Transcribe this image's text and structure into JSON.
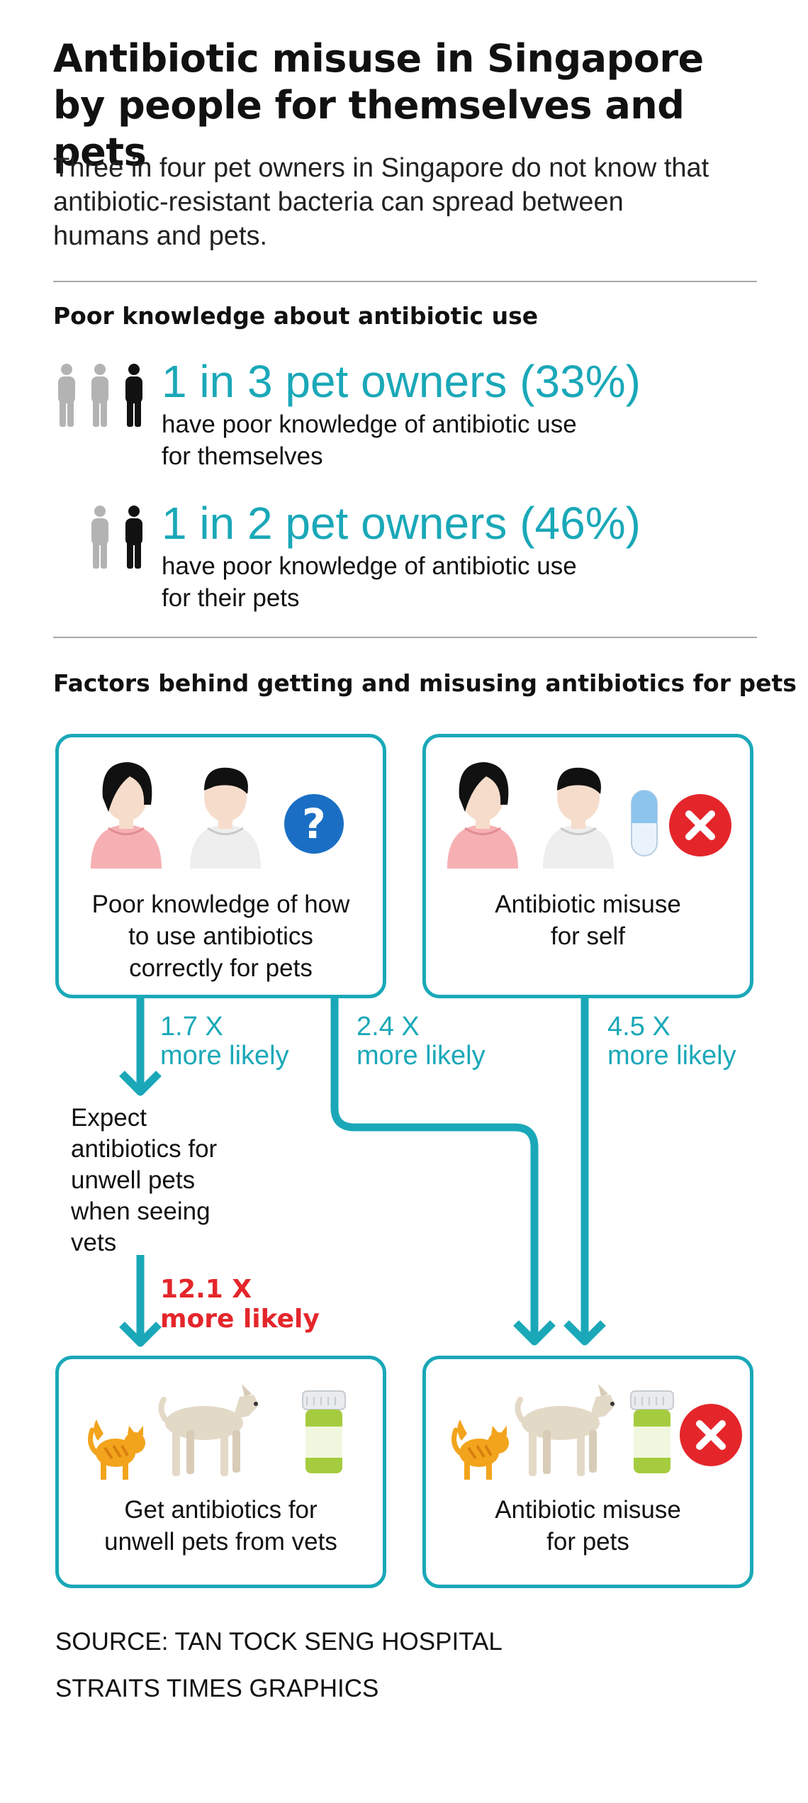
{
  "header": {
    "title_line1": "Antibiotic misuse in Singapore",
    "title_line2": "by people for themselves and pets",
    "subtitle_line1": "Three in four pet owners in Singapore do not know that",
    "subtitle_line2": "antibiotic-resistant bacteria can spread between",
    "subtitle_line3": "humans and pets."
  },
  "knowledge": {
    "heading": "Poor knowledge about antibiotic use",
    "stats": [
      {
        "headline": "1 in 3 pet owners (33%)",
        "desc_line1": "have poor knowledge of antibiotic use",
        "desc_line2": "for themselves",
        "highlighted": 1,
        "total": 3
      },
      {
        "headline": "1 in 2 pet owners (46%)",
        "desc_line1": "have poor knowledge of antibiotic use",
        "desc_line2": "for their pets",
        "highlighted": 1,
        "total": 2
      }
    ]
  },
  "factors": {
    "heading": "Factors behind getting and misusing antibiotics for pets",
    "boxes": {
      "poor_knowledge": {
        "line1": "Poor knowledge of how",
        "line2": "to use antibiotics",
        "line3": "correctly for pets"
      },
      "misuse_self": {
        "line1": "Antibiotic misuse",
        "line2": "for self"
      },
      "get_from_vets": {
        "line1": "Get antibiotics for",
        "line2": "unwell pets from vets"
      },
      "misuse_pets": {
        "line1": "Antibiotic misuse",
        "line2": "for pets"
      }
    },
    "intermediate": {
      "line1": "Expect",
      "line2": "antibiotics for",
      "line3": "unwell pets",
      "line4": "when seeing",
      "line5": "vets"
    },
    "links": [
      {
        "value": "1.7 X",
        "text": "more likely"
      },
      {
        "value": "2.4 X",
        "text": "more likely"
      },
      {
        "value": "4.5 X",
        "text": "more likely"
      },
      {
        "value": "12.1 X",
        "text": "more likely"
      }
    ]
  },
  "footer": {
    "source": "SOURCE: TAN TOCK SENG HOSPITAL",
    "credit": "STRAITS TIMES GRAPHICS"
  },
  "colors": {
    "accent": "#1aa8b8",
    "highlight_red": "#e4262b",
    "person_dark": "#111111",
    "person_light": "#b3b3b3",
    "question_blue": "#1a6fc4"
  },
  "icons": [
    "person-icon",
    "woman-avatar-icon",
    "man-avatar-icon",
    "question-icon",
    "capsule-icon",
    "cross-icon",
    "cat-icon",
    "dog-icon",
    "medicine-bottle-icon"
  ]
}
